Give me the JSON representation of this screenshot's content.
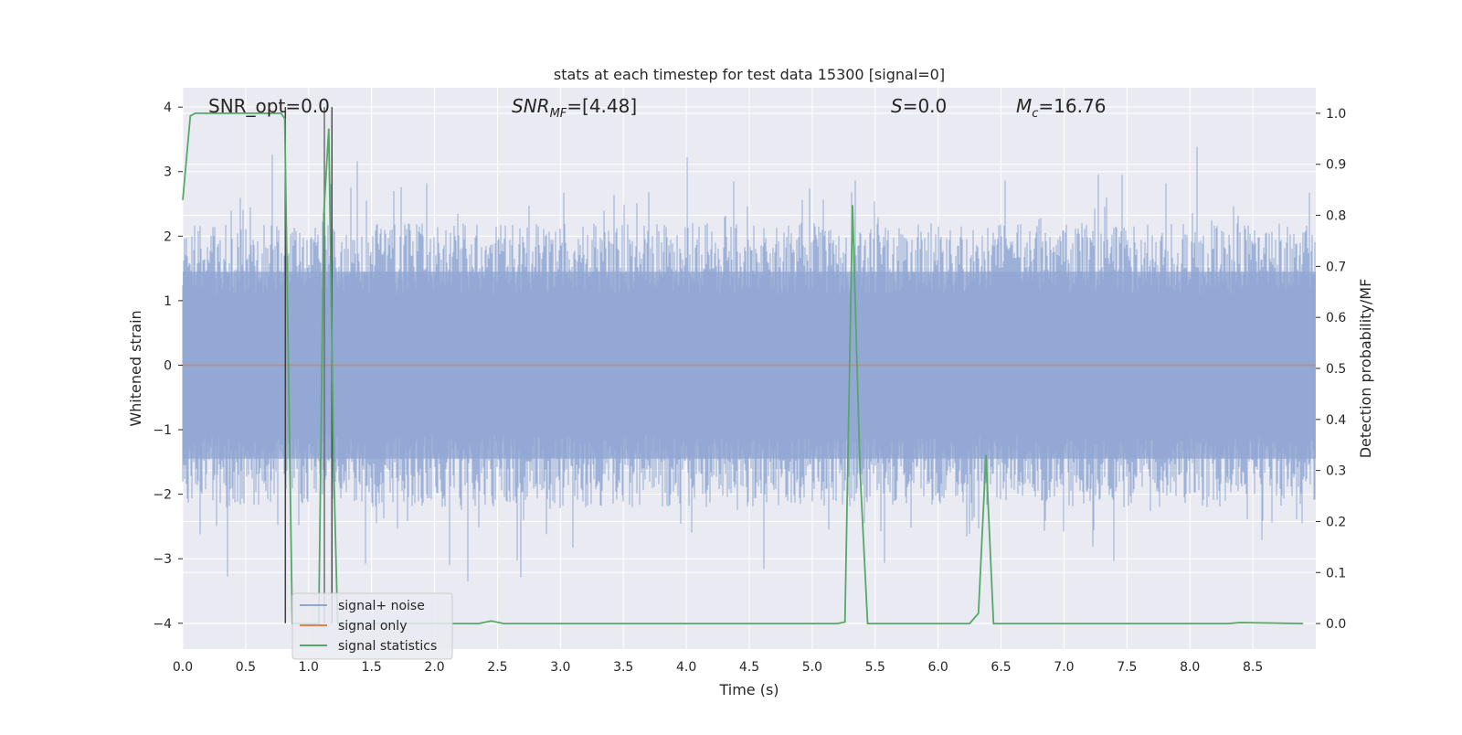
{
  "chart_data": {
    "type": "line",
    "title": "stats at each timestep for test data 15300 [signal=0]",
    "xlabel": "Time (s)",
    "ylabel_left": "Whitened strain",
    "ylabel_right": "Detection probability/MF",
    "xlim": [
      0.0,
      9.0
    ],
    "ylim_left": [
      -4.4,
      4.3
    ],
    "ylim_right": [
      -0.05,
      1.05
    ],
    "xticks": [
      "0.0",
      "0.5",
      "1.0",
      "1.5",
      "2.0",
      "2.5",
      "3.0",
      "3.5",
      "4.0",
      "4.5",
      "5.0",
      "5.5",
      "6.0",
      "6.5",
      "7.0",
      "7.5",
      "8.0",
      "8.5"
    ],
    "yticks_left": [
      "−4",
      "−3",
      "−2",
      "−1",
      "0",
      "1",
      "2",
      "3",
      "4"
    ],
    "yticks_right": [
      "0.0",
      "0.1",
      "0.2",
      "0.3",
      "0.4",
      "0.5",
      "0.6",
      "0.7",
      "0.8",
      "0.9",
      "1.0"
    ],
    "grid": true,
    "legend_position": "lower-left",
    "annotations": {
      "snr_opt": "SNR_opt=0.0",
      "snr_mf_pre": "SNR",
      "snr_mf_sub": "MF",
      "snr_mf_post": "=[4.48]",
      "s_pre": "S",
      "s_post": "=0.0",
      "mc_pre": "M",
      "mc_sub": "c",
      "mc_post": "=16.76"
    },
    "series": [
      {
        "name": "signal+ noise",
        "color": "#8fa6d2",
        "axis": "left",
        "description_type": "noise",
        "envelope_amplitude": 2.0,
        "peak_amplitude": 3.9
      },
      {
        "name": "signal only",
        "color": "#dd8452",
        "axis": "left",
        "x": [
          0.0,
          9.0
        ],
        "y": [
          0.0,
          0.0
        ]
      },
      {
        "name": "signal statistics",
        "color": "#55a868",
        "axis": "right",
        "x": [
          0.0,
          0.06,
          0.1,
          0.3,
          0.6,
          0.78,
          0.81,
          0.84,
          0.87,
          0.9,
          1.05,
          1.08,
          1.12,
          1.16,
          1.2,
          1.23,
          1.26,
          1.3,
          2.35,
          2.45,
          2.55,
          3.5,
          5.2,
          5.26,
          5.32,
          5.38,
          5.44,
          6.25,
          6.32,
          6.38,
          6.44,
          8.3,
          8.4,
          8.9
        ],
        "y": [
          0.83,
          0.995,
          1.0,
          1.0,
          1.0,
          1.0,
          0.99,
          0.5,
          0.0,
          0.0,
          0.0,
          0.0,
          0.8,
          0.97,
          0.3,
          0.0,
          0.0,
          0.0,
          0.0,
          0.005,
          0.0,
          0.0,
          0.0,
          0.003,
          0.82,
          0.3,
          0.0,
          0.0,
          0.02,
          0.33,
          0.0,
          0.0,
          0.002,
          0.0
        ]
      }
    ],
    "vertical_markers": [
      {
        "x": 0.815,
        "color": "#404040"
      },
      {
        "x": 1.125,
        "color": "#707070"
      },
      {
        "x": 1.185,
        "color": "#505050"
      }
    ]
  }
}
